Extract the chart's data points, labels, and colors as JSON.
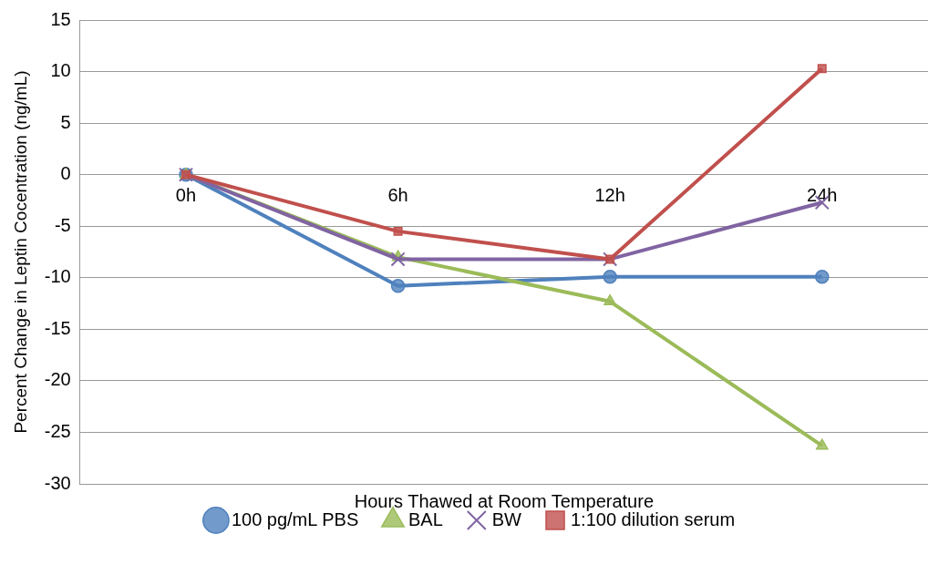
{
  "chart_data": {
    "type": "line",
    "xlabel": "Hours Thawed at Room Temperature",
    "ylabel": "Percent Change in Leptin Cocentration (ng/mL)",
    "categories": [
      "0h",
      "6h",
      "12h",
      "24h"
    ],
    "series": [
      {
        "name": "100 pg/mL PBS",
        "color": "#4f81bd",
        "marker": "circle",
        "values": [
          0,
          -10.8,
          -9.9,
          -9.9
        ]
      },
      {
        "name": "BAL",
        "color": "#9bbb59",
        "marker": "triangle",
        "values": [
          0,
          -8.0,
          -12.3,
          -26.3
        ]
      },
      {
        "name": "BW",
        "color": "#8064a2",
        "marker": "cross",
        "values": [
          0,
          -8.2,
          -8.2,
          -2.7
        ]
      },
      {
        "name": "1:100 dilution serum",
        "color": "#c0504d",
        "marker": "square",
        "values": [
          0,
          -5.5,
          -8.2,
          10.3
        ]
      }
    ],
    "ylim": [
      -30,
      15
    ],
    "yticks": [
      -30,
      -25,
      -20,
      -15,
      -10,
      -5,
      0,
      5,
      10,
      15
    ],
    "grid": "y",
    "legend": "bottom"
  }
}
